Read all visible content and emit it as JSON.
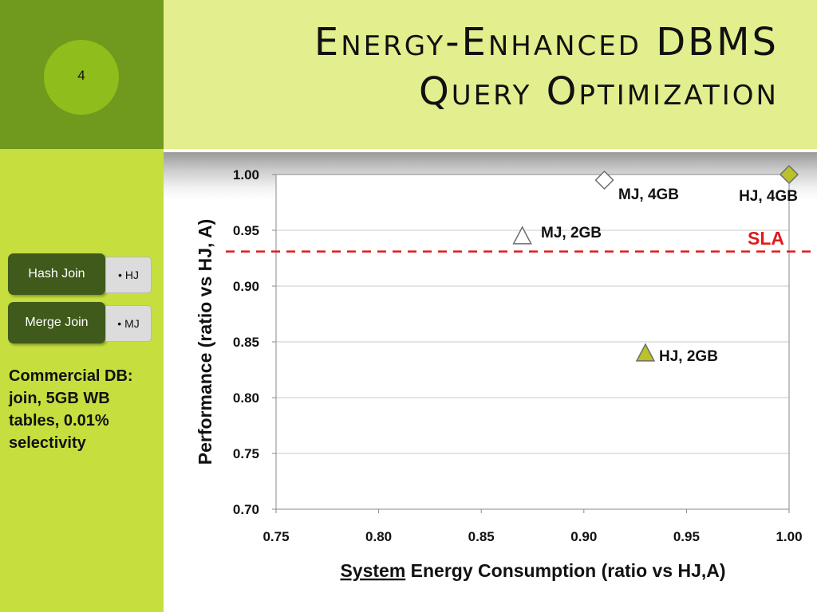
{
  "slide": {
    "number": "4",
    "title_lines": [
      "Energy-Enhanced DBMS",
      "Query Optimization"
    ],
    "colors": {
      "accent_dark": "#6f9a1e",
      "accent_light": "#c6df3e",
      "title_band": "#e3ee8e",
      "legend_box": "#3f5a1b",
      "sla": "#e01b1b"
    }
  },
  "legend": [
    {
      "label": "Hash Join",
      "abbr": "HJ"
    },
    {
      "label": "Merge Join",
      "abbr": "MJ"
    }
  ],
  "description_lines": [
    "Commercial DB:",
    "join, 5GB WB",
    "tables, 0.01%",
    "selectivity"
  ],
  "chart_data": {
    "type": "scatter",
    "xlabel_underlined": "System",
    "xlabel_rest": " Energy Consumption (ratio vs HJ,A)",
    "ylabel": "Performance (ratio vs HJ, A)",
    "xlim": [
      0.75,
      1.0
    ],
    "ylim": [
      0.7,
      1.0
    ],
    "xticks": [
      "0.75",
      "0.80",
      "0.85",
      "0.90",
      "0.95",
      "1.00"
    ],
    "yticks": [
      "0.70",
      "0.75",
      "0.80",
      "0.85",
      "0.90",
      "0.95",
      "1.00"
    ],
    "grid": true,
    "points": [
      {
        "label": "MJ, 4GB",
        "x": 0.91,
        "y": 0.995,
        "marker": "diamond",
        "color": "#ffffff"
      },
      {
        "label": "HJ, 4GB",
        "x": 1.0,
        "y": 1.0,
        "marker": "diamond",
        "color": "#b9c22a"
      },
      {
        "label": "MJ, 2GB",
        "x": 0.87,
        "y": 0.945,
        "marker": "triangle",
        "color": "#ffffff"
      },
      {
        "label": "HJ, 2GB",
        "x": 0.93,
        "y": 0.84,
        "marker": "triangle",
        "color": "#b9c22a"
      }
    ],
    "sla": {
      "label": "SLA",
      "y": 0.931,
      "color": "#e01b1b"
    }
  }
}
